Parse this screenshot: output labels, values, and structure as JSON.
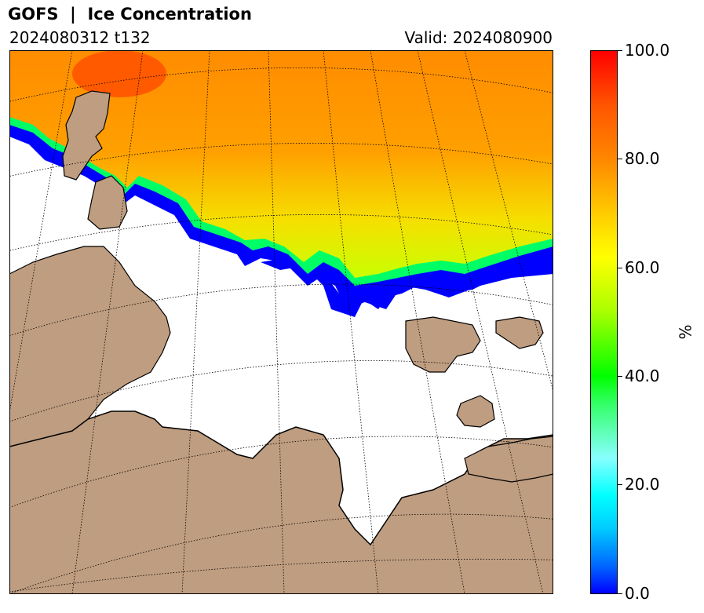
{
  "header": {
    "title": "GOFS  |  Ice Concentration",
    "run": "2024080312 t132",
    "valid": "Valid: 2024080900"
  },
  "colorbar": {
    "unit": "%",
    "ticks": [
      "0.0",
      "20.0",
      "40.0",
      "60.0",
      "80.0",
      "100.0"
    ],
    "range": [
      0,
      100
    ]
  },
  "colors": {
    "land": "#bf9d80",
    "water_no_ice": "#ffffff",
    "ice_low": "#0000ff",
    "ice_high": "#ff0000"
  }
}
